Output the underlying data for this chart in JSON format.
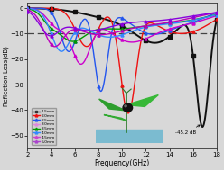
{
  "xlabel": "Frequency(GHz)",
  "ylabel": "Reflection Loss(dB)",
  "xlim": [
    2,
    18
  ],
  "ylim": [
    -55,
    2
  ],
  "yticks": [
    0,
    -10,
    -20,
    -30,
    -40,
    -50
  ],
  "xticks": [
    2,
    4,
    6,
    8,
    10,
    12,
    14,
    16,
    18
  ],
  "dashed_line_y": -10,
  "annotation_text": "-45.2 dB",
  "bg_color": "#d8d8d8",
  "colors": [
    "#111111",
    "#ee1111",
    "#2255ee",
    "#cc00cc",
    "#009900",
    "#3388ff",
    "#bb00bb",
    "#8800dd"
  ],
  "labels": [
    "1.5mm",
    "2.0mm",
    "2.5mm",
    "3.0mm",
    "3.5mm",
    "4.0mm",
    "4.5mm",
    "5.0mm"
  ],
  "legend_colors": [
    "#333333",
    "#ee1111",
    "#2255ee",
    "#dd88dd",
    "#009900",
    "#3388ff",
    "#cc44cc",
    "#aa44cc"
  ]
}
